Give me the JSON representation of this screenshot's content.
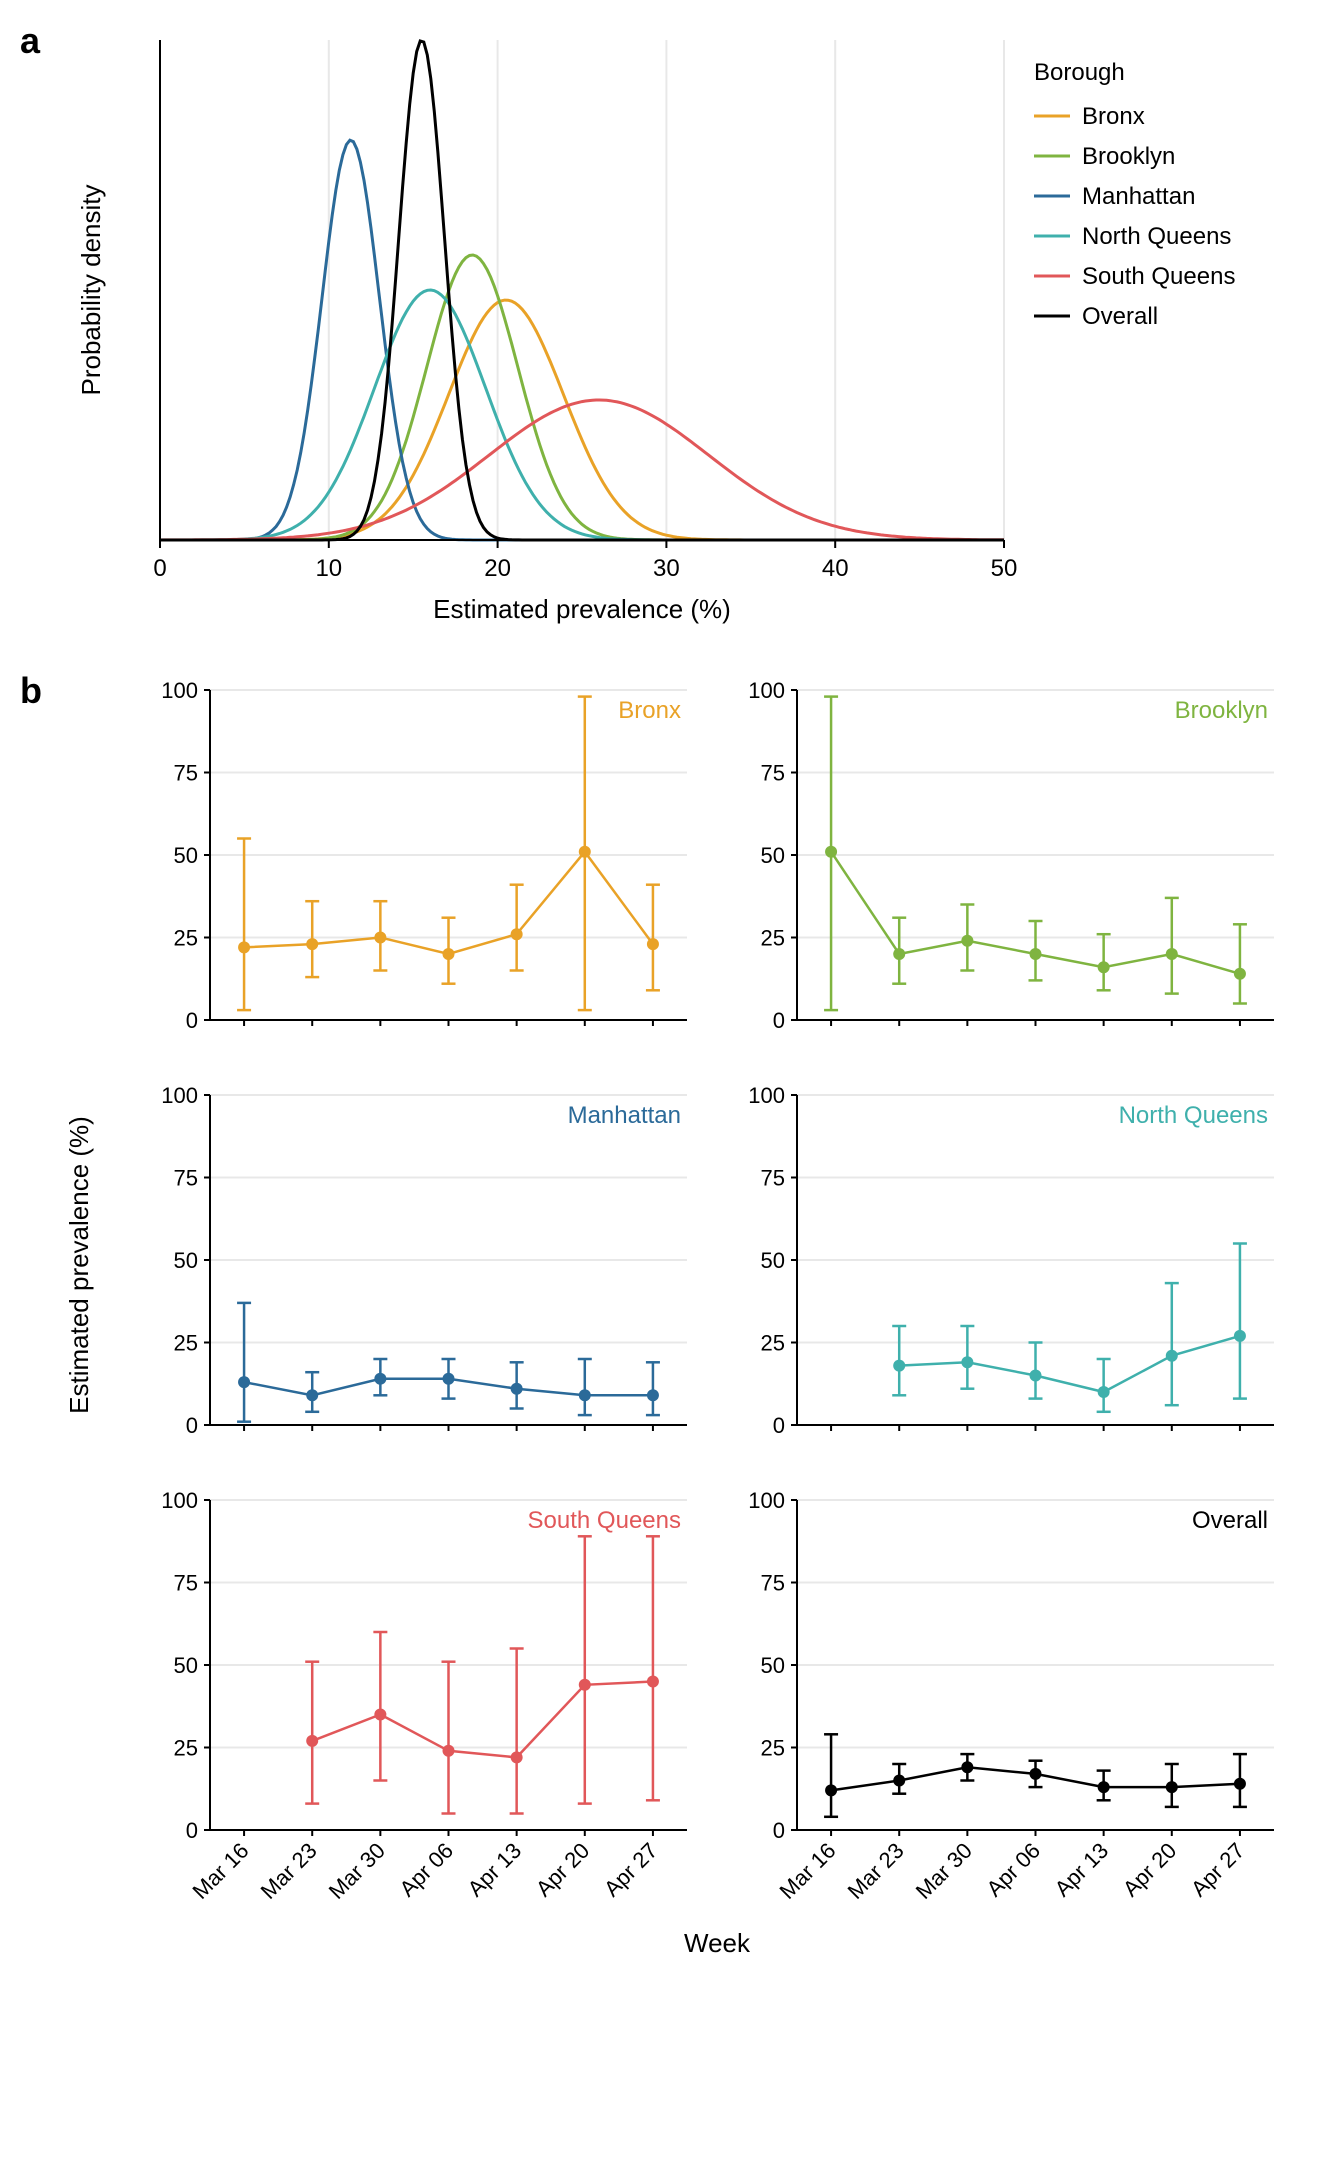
{
  "panel_a": {
    "label": "a",
    "ylabel": "Probability density",
    "xlabel": "Estimated prevalence (%)",
    "xlim": [
      0,
      50
    ],
    "xticks": [
      0,
      10,
      20,
      30,
      40,
      50
    ],
    "ymax": 1.0,
    "legend_title": "Borough",
    "tick_fontsize": 24,
    "label_fontsize": 26,
    "legend_fontsize": 24,
    "line_width": 3,
    "background_color": "#ffffff",
    "grid_color": "#e8e8e8",
    "axis_color": "#000000",
    "curves": [
      {
        "name": "Bronx",
        "color": "#e9a227",
        "mean": 20.5,
        "sd": 3.4,
        "peak": 0.48
      },
      {
        "name": "Brooklyn",
        "color": "#7fb440",
        "mean": 18.5,
        "sd": 2.7,
        "peak": 0.57
      },
      {
        "name": "Manhattan",
        "color": "#2b6a99",
        "mean": 11.3,
        "sd": 1.7,
        "peak": 0.8
      },
      {
        "name": "North Queens",
        "color": "#3fb0ac",
        "mean": 16.0,
        "sd": 3.3,
        "peak": 0.5
      },
      {
        "name": "South Queens",
        "color": "#e15759",
        "mean": 26.0,
        "sd": 6.5,
        "peak": 0.28
      },
      {
        "name": "Overall",
        "color": "#000000",
        "mean": 15.5,
        "sd": 1.35,
        "peak": 1.0
      }
    ]
  },
  "panel_b": {
    "label": "b",
    "ylabel": "Estimated prevalence (%)",
    "xlabel": "Week",
    "ylim": [
      0,
      100
    ],
    "yticks": [
      0,
      25,
      50,
      75,
      100
    ],
    "weeks": [
      "Mar 16",
      "Mar 23",
      "Mar 30",
      "Apr 06",
      "Apr 13",
      "Apr 20",
      "Apr 27"
    ],
    "tick_fontsize": 22,
    "label_fontsize": 26,
    "title_fontsize": 24,
    "line_width": 2.5,
    "marker_size": 6,
    "background_color": "#ffffff",
    "grid_color": "#e8e8e8",
    "axis_color": "#000000",
    "subplots": [
      {
        "title": "Bronx",
        "color": "#e9a227",
        "points": [
          {
            "y": 22,
            "lo": 3,
            "hi": 55
          },
          {
            "y": 23,
            "lo": 13,
            "hi": 36
          },
          {
            "y": 25,
            "lo": 15,
            "hi": 36
          },
          {
            "y": 20,
            "lo": 11,
            "hi": 31
          },
          {
            "y": 26,
            "lo": 15,
            "hi": 41
          },
          {
            "y": 51,
            "lo": 3,
            "hi": 98
          },
          {
            "y": 23,
            "lo": 9,
            "hi": 41
          }
        ]
      },
      {
        "title": "Brooklyn",
        "color": "#7fb440",
        "points": [
          {
            "y": 51,
            "lo": 3,
            "hi": 98
          },
          {
            "y": 20,
            "lo": 11,
            "hi": 31
          },
          {
            "y": 24,
            "lo": 15,
            "hi": 35
          },
          {
            "y": 20,
            "lo": 12,
            "hi": 30
          },
          {
            "y": 16,
            "lo": 9,
            "hi": 26
          },
          {
            "y": 20,
            "lo": 8,
            "hi": 37
          },
          {
            "y": 14,
            "lo": 5,
            "hi": 29
          }
        ]
      },
      {
        "title": "Manhattan",
        "color": "#2b6a99",
        "points": [
          {
            "y": 13,
            "lo": 1,
            "hi": 37
          },
          {
            "y": 9,
            "lo": 4,
            "hi": 16
          },
          {
            "y": 14,
            "lo": 9,
            "hi": 20
          },
          {
            "y": 14,
            "lo": 8,
            "hi": 20
          },
          {
            "y": 11,
            "lo": 5,
            "hi": 19
          },
          {
            "y": 9,
            "lo": 3,
            "hi": 20
          },
          {
            "y": 9,
            "lo": 3,
            "hi": 19
          }
        ]
      },
      {
        "title": "North Queens",
        "color": "#3fb0ac",
        "points": [
          null,
          {
            "y": 18,
            "lo": 9,
            "hi": 30
          },
          {
            "y": 19,
            "lo": 11,
            "hi": 30
          },
          {
            "y": 15,
            "lo": 8,
            "hi": 25
          },
          {
            "y": 10,
            "lo": 4,
            "hi": 20
          },
          {
            "y": 21,
            "lo": 6,
            "hi": 43
          },
          {
            "y": 27,
            "lo": 8,
            "hi": 55
          }
        ]
      },
      {
        "title": "South Queens",
        "color": "#e15759",
        "points": [
          null,
          {
            "y": 27,
            "lo": 8,
            "hi": 51
          },
          {
            "y": 35,
            "lo": 15,
            "hi": 60
          },
          {
            "y": 24,
            "lo": 5,
            "hi": 51
          },
          {
            "y": 22,
            "lo": 5,
            "hi": 55
          },
          {
            "y": 44,
            "lo": 8,
            "hi": 89
          },
          {
            "y": 45,
            "lo": 9,
            "hi": 89
          }
        ]
      },
      {
        "title": "Overall",
        "color": "#000000",
        "points": [
          {
            "y": 12,
            "lo": 4,
            "hi": 29
          },
          {
            "y": 15,
            "lo": 11,
            "hi": 20
          },
          {
            "y": 19,
            "lo": 15,
            "hi": 23
          },
          {
            "y": 17,
            "lo": 13,
            "hi": 21
          },
          {
            "y": 13,
            "lo": 9,
            "hi": 18
          },
          {
            "y": 13,
            "lo": 7,
            "hi": 20
          },
          {
            "y": 14,
            "lo": 7,
            "hi": 23
          }
        ]
      }
    ]
  }
}
